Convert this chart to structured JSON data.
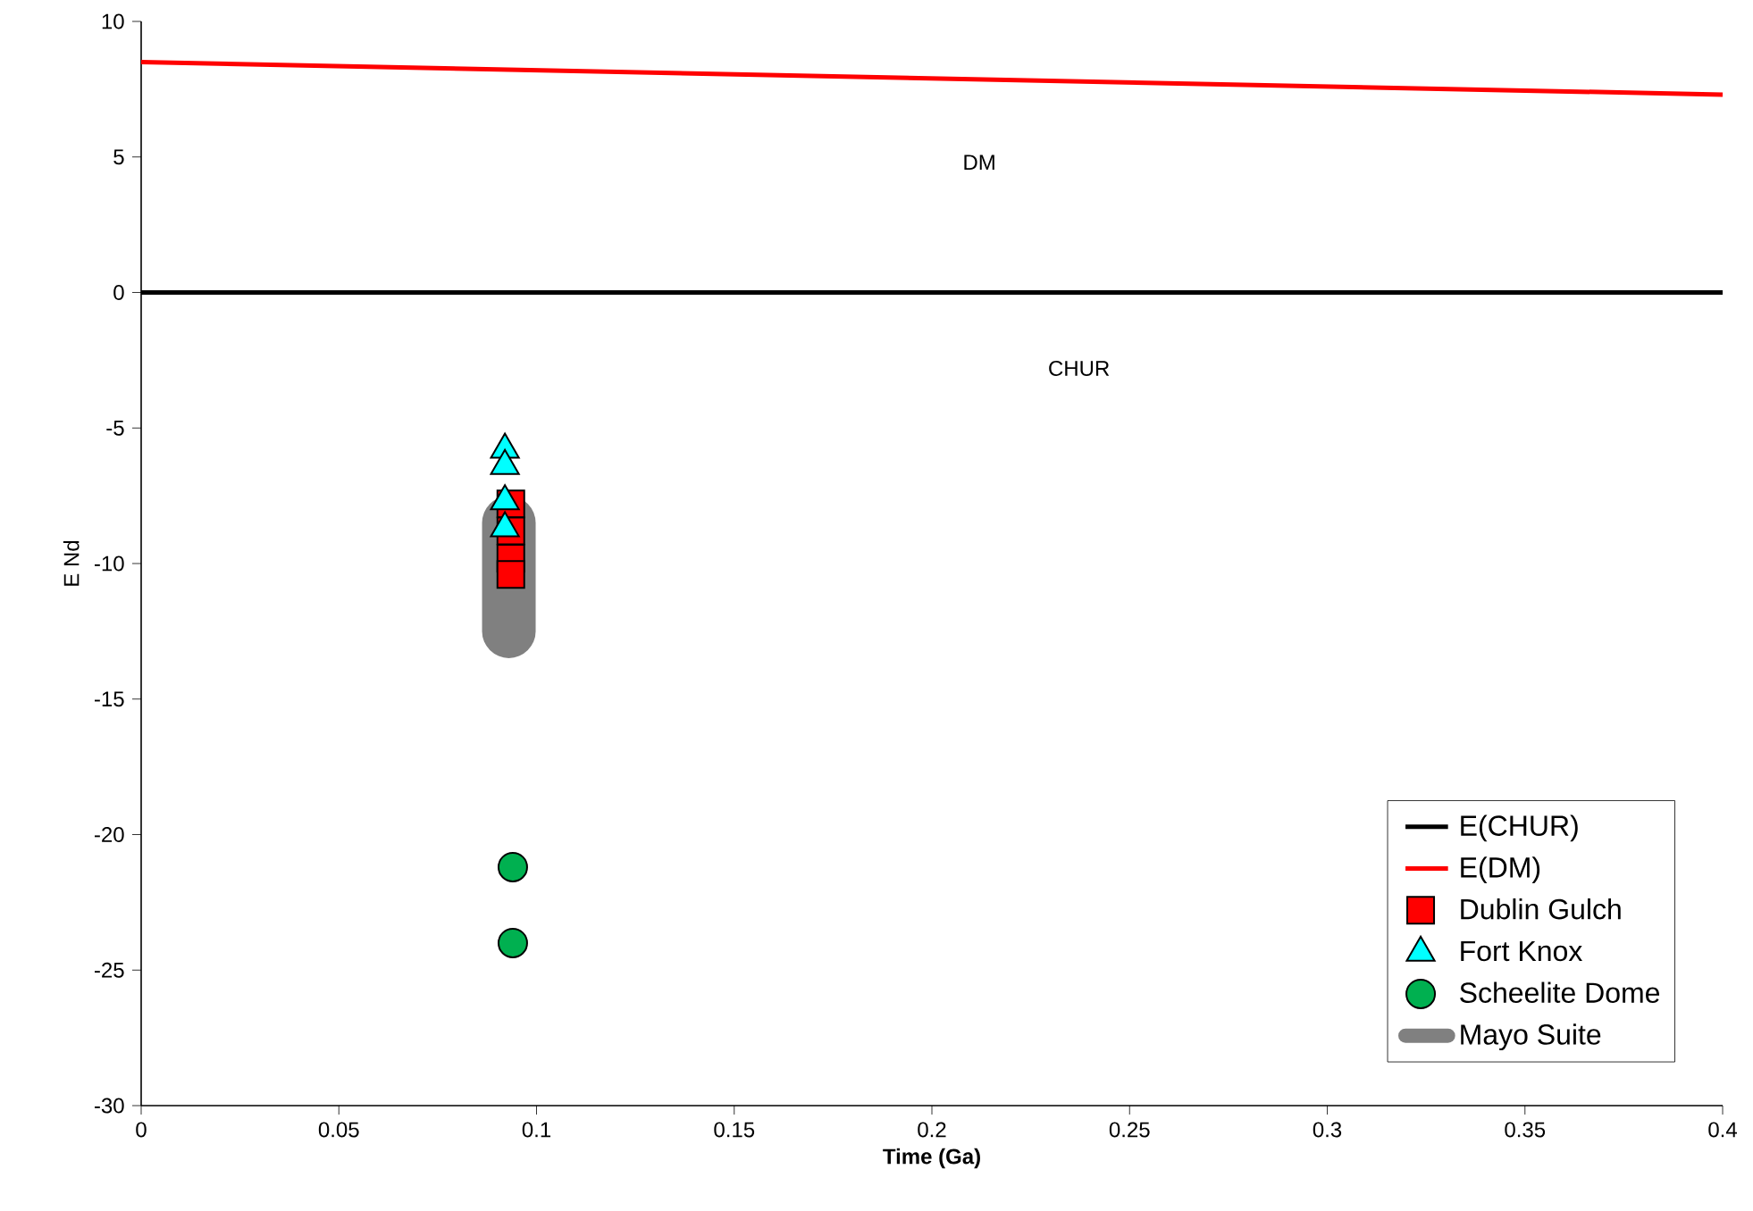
{
  "chart_data": {
    "type": "scatter",
    "xlabel": "**Time (Ga)**",
    "ylabel": "E Nd",
    "xlim": [
      0,
      0.4
    ],
    "ylim": [
      -30,
      10
    ],
    "xticks": [
      0,
      0.05,
      0.1,
      0.15,
      0.2,
      0.25,
      0.3,
      0.35,
      0.4
    ],
    "yticks": [
      -30,
      -25,
      -20,
      -15,
      -10,
      -5,
      0,
      5,
      10
    ],
    "grid": false,
    "legend": "bottom right",
    "annotations": [
      "DM",
      "CHUR"
    ],
    "series": [
      {
        "name": "E(CHUR)",
        "type": "line",
        "color": "#000000",
        "marker": "none",
        "line_style": "solid",
        "x": [
          0,
          0.4
        ],
        "values": [
          0,
          0
        ]
      },
      {
        "name": "E(DM)",
        "type": "line",
        "color": "#ff0000",
        "marker": "none",
        "line_style": "solid",
        "x": [
          0,
          0.4
        ],
        "values": [
          8.5,
          7.3
        ]
      },
      {
        "name": "Dublin Gulch",
        "color": "#ff0000",
        "marker": "square",
        "x": [
          0.0935,
          0.0935,
          0.0935,
          0.0935
        ],
        "values": [
          -7.8,
          -8.8,
          -9.8,
          -10.4
        ]
      },
      {
        "name": "Fort Knox",
        "color": "#00ffff",
        "marker": "triangle",
        "x": [
          0.092,
          0.092,
          0.092,
          0.092
        ],
        "values": [
          -5.8,
          -6.4,
          -7.7,
          -8.7
        ]
      },
      {
        "name": "Scheelite Dome",
        "color": "#00b050",
        "marker": "circle",
        "x": [
          0.094,
          0.094
        ],
        "values": [
          -21.2,
          -24.0
        ]
      },
      {
        "name": "Mayo Suite",
        "type": "line",
        "color": "#808080",
        "marker": "none",
        "line_style": "solid",
        "x": [
          0.093,
          0.093
        ],
        "values": [
          -8.5,
          -12.5
        ]
      }
    ]
  }
}
